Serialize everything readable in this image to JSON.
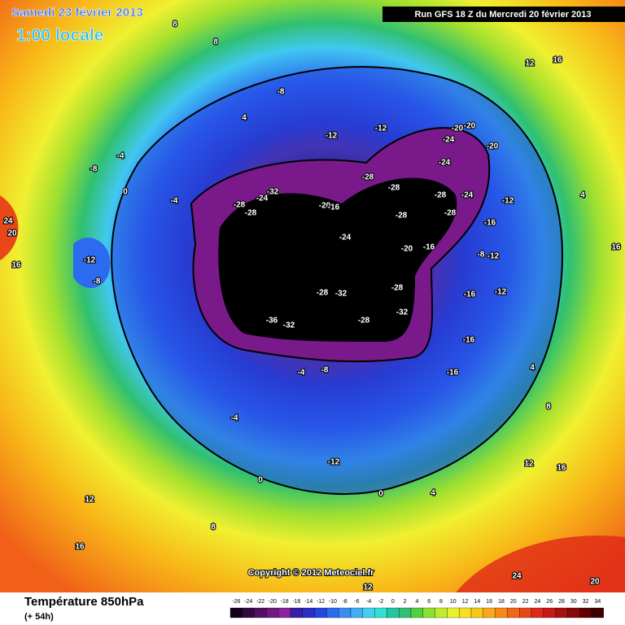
{
  "header": {
    "date": "Samedi 23 février 2013",
    "time": "1:00 locale",
    "run": "Run GFS 18 Z du Mercredi 20 février 2013"
  },
  "map": {
    "labels": [
      -8,
      -12,
      -12,
      -20,
      -20,
      -24,
      -20,
      -24,
      -28,
      -28,
      -28,
      -24,
      -12,
      -28,
      -28,
      -24,
      -32,
      -20,
      -16,
      -24,
      -28,
      -28,
      -16,
      -20,
      -16,
      -8,
      -12,
      -12,
      -8,
      -28,
      -32,
      -28,
      -16,
      -12,
      -32,
      -36,
      -32,
      -28,
      -16,
      -16,
      -8,
      -4,
      -4,
      -12,
      0,
      4,
      12,
      16,
      24,
      20,
      12,
      16,
      12,
      8,
      24,
      20,
      16,
      4,
      8,
      8,
      12,
      16,
      4,
      16,
      4,
      8,
      0,
      -4,
      -8,
      0,
      -4
    ],
    "copyright": "Copyright © 2012 Meteociel.fr"
  },
  "footer": {
    "title": "Température 850hPa",
    "subtitle": "(+ 54h)"
  },
  "legend": {
    "ticks": [
      -26,
      -24,
      -22,
      -20,
      -18,
      -16,
      -14,
      -12,
      -10,
      -8,
      -6,
      -4,
      -2,
      0,
      2,
      4,
      6,
      8,
      10,
      12,
      14,
      16,
      18,
      20,
      22,
      24,
      26,
      28,
      30,
      32,
      34
    ],
    "colors": [
      "#14001c",
      "#340840",
      "#521060",
      "#701a80",
      "#8a24a0",
      "#3a1ea8",
      "#2a2ec4",
      "#2446e0",
      "#2c6af0",
      "#3a8cf5",
      "#40aef5",
      "#40d0f0",
      "#30e0d0",
      "#20c8a0",
      "#30c070",
      "#50d040",
      "#8ce030",
      "#c0ec30",
      "#e8f030",
      "#f8e020",
      "#f8c818",
      "#f8a818",
      "#f88818",
      "#f06818",
      "#e84818",
      "#e02818",
      "#c81818",
      "#a81010",
      "#880808",
      "#600000",
      "#400000"
    ]
  }
}
